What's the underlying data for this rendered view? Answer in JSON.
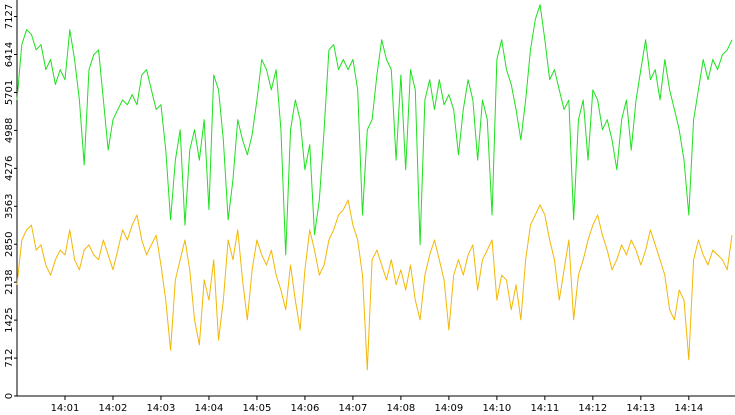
{
  "chart_data": {
    "type": "line",
    "categories": [
      null,
      null,
      null,
      null,
      null,
      null,
      null,
      null,
      null,
      null,
      "14:01",
      null,
      null,
      null,
      null,
      null,
      null,
      null,
      null,
      null,
      "14:02",
      null,
      null,
      null,
      null,
      null,
      null,
      null,
      null,
      null,
      "14:03",
      null,
      null,
      null,
      null,
      null,
      null,
      null,
      null,
      null,
      "14:04",
      null,
      null,
      null,
      null,
      null,
      null,
      null,
      null,
      null,
      "14:05",
      null,
      null,
      null,
      null,
      null,
      null,
      null,
      null,
      null,
      "14:06",
      null,
      null,
      null,
      null,
      null,
      null,
      null,
      null,
      null,
      "14:07",
      null,
      null,
      null,
      null,
      null,
      null,
      null,
      null,
      null,
      "14:08",
      null,
      null,
      null,
      null,
      null,
      null,
      null,
      null,
      null,
      "14:09",
      null,
      null,
      null,
      null,
      null,
      null,
      null,
      null,
      null,
      "14:10",
      null,
      null,
      null,
      null,
      null,
      null,
      null,
      null,
      null,
      "14:11",
      null,
      null,
      null,
      null,
      null,
      null,
      null,
      null,
      null,
      "14:12",
      null,
      null,
      null,
      null,
      null,
      null,
      null,
      null,
      null,
      "14:13",
      null,
      null,
      null,
      null,
      null,
      null,
      null,
      null,
      null,
      "14:14",
      null,
      null,
      null,
      null,
      null,
      null,
      null,
      null,
      null
    ],
    "series": [
      {
        "color": "#1ee01e",
        "values": [
          5560,
          6600,
          6880,
          6790,
          6500,
          6600,
          6130,
          6320,
          5850,
          6130,
          5940,
          6880,
          6320,
          5560,
          4340,
          6130,
          6410,
          6500,
          5560,
          4620,
          5190,
          5380,
          5560,
          5470,
          5660,
          5470,
          6030,
          6130,
          5750,
          5380,
          5470,
          4620,
          3310,
          4430,
          5000,
          3210,
          4620,
          5000,
          4430,
          5190,
          3500,
          6030,
          5750,
          4810,
          3310,
          4060,
          5190,
          4810,
          4530,
          4910,
          5560,
          6320,
          6130,
          5750,
          6130,
          5000,
          2650,
          5000,
          5560,
          5190,
          4250,
          4720,
          3030,
          3680,
          5000,
          6500,
          6600,
          6130,
          6320,
          6130,
          6320,
          5750,
          3400,
          5000,
          5190,
          6030,
          6690,
          6320,
          6130,
          4430,
          6030,
          4250,
          6130,
          5750,
          2840,
          5560,
          5940,
          5380,
          5940,
          5470,
          5660,
          5380,
          4530,
          5380,
          5940,
          5560,
          4430,
          5560,
          5190,
          3400,
          6320,
          6690,
          6130,
          5850,
          5380,
          4810,
          5560,
          6500,
          7070,
          7350,
          6690,
          5940,
          6130,
          5750,
          5380,
          5560,
          3310,
          5190,
          5560,
          4430,
          5750,
          5560,
          5000,
          5190,
          4810,
          4250,
          5190,
          5560,
          4620,
          5560,
          6130,
          6690,
          5940,
          6130,
          5560,
          6320,
          5750,
          5380,
          5000,
          4430,
          3400,
          5190,
          5750,
          6320,
          5940,
          6320,
          6130,
          6410,
          6500,
          6690
        ]
      },
      {
        "color": "#f2b705",
        "values": [
          2090,
          2930,
          3120,
          3210,
          2740,
          2840,
          2460,
          2270,
          2560,
          2740,
          2650,
          3120,
          2560,
          2370,
          2740,
          2840,
          2650,
          2560,
          2930,
          2650,
          2370,
          2740,
          3120,
          2930,
          3210,
          3400,
          2930,
          2650,
          2840,
          3020,
          2460,
          1800,
          860,
          2180,
          2560,
          2930,
          2370,
          1430,
          960,
          2180,
          1800,
          2560,
          1050,
          1800,
          2930,
          2560,
          3120,
          2180,
          1430,
          2370,
          2930,
          2650,
          2460,
          2740,
          2270,
          1990,
          1620,
          2460,
          1800,
          1240,
          2370,
          3120,
          2740,
          2270,
          2460,
          2930,
          3120,
          3400,
          3500,
          3680,
          3210,
          2930,
          2270,
          490,
          2560,
          2740,
          2460,
          2180,
          2560,
          2090,
          2370,
          1990,
          2460,
          1800,
          1430,
          2270,
          2650,
          2930,
          2560,
          2180,
          1240,
          2270,
          2560,
          2270,
          2650,
          2840,
          1990,
          2560,
          2740,
          2930,
          1800,
          2270,
          2180,
          1620,
          2090,
          1430,
          2560,
          3210,
          3400,
          3590,
          3400,
          2930,
          2560,
          1800,
          2370,
          2930,
          1430,
          2270,
          2560,
          2930,
          3210,
          3400,
          3020,
          2740,
          2370,
          2560,
          2840,
          2650,
          2930,
          2740,
          2460,
          2740,
          3120,
          2840,
          2560,
          2270,
          1620,
          1430,
          1990,
          1800,
          680,
          2560,
          2930,
          2650,
          2460,
          2740,
          2650,
          2560,
          2370,
          3020
        ]
      }
    ],
    "ylim": [
      0,
      7400
    ],
    "yticks": [
      0,
      712,
      1425,
      2138,
      2850,
      3563,
      4276,
      4988,
      5701,
      6414,
      7127
    ]
  }
}
